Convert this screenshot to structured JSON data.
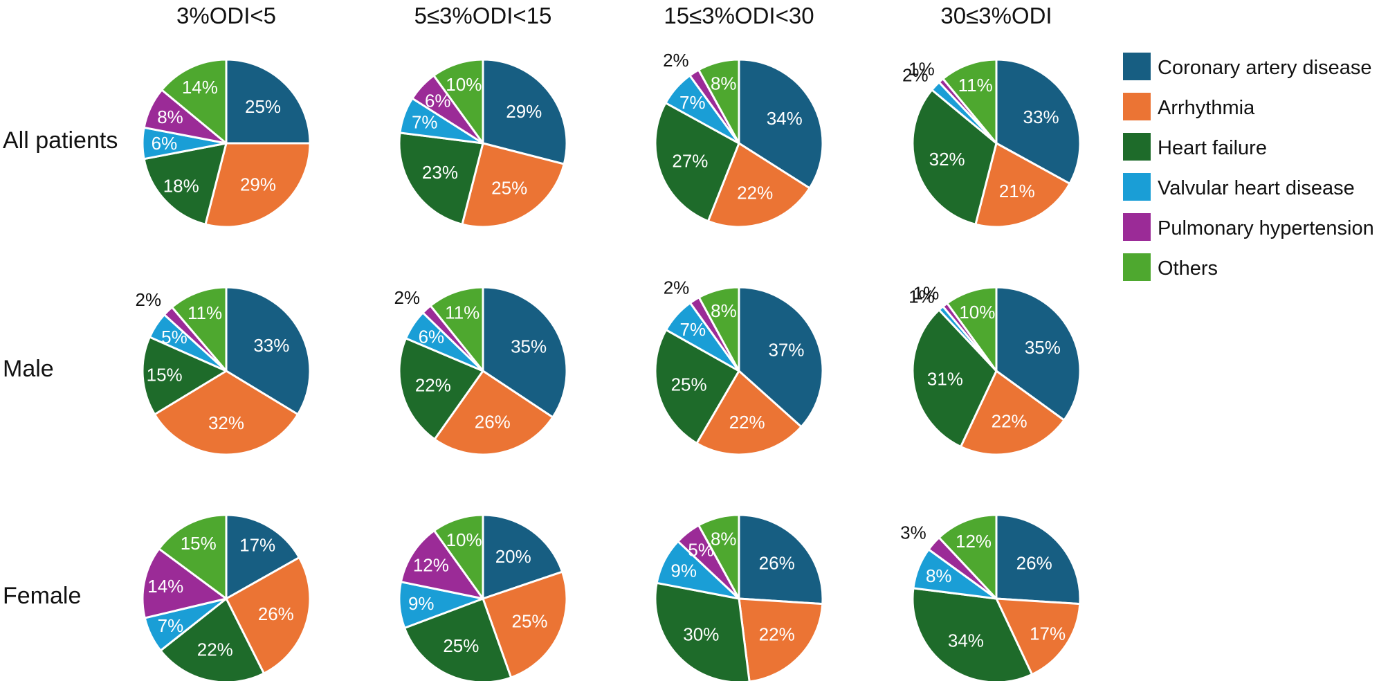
{
  "chart_data": {
    "type": "pie",
    "title": "",
    "columns": [
      "3%ODI<5",
      "5≤3%ODI<15",
      "15≤3%ODI<30",
      "30≤3%ODI"
    ],
    "rows": [
      "All patients",
      "Male",
      "Female"
    ],
    "categories": [
      "Coronary artery disease",
      "Arrhythmia",
      "Heart failure",
      "Valvular heart disease",
      "Pulmonary hypertension",
      "Others"
    ],
    "colors": [
      "#175e82",
      "#eb7434",
      "#1e6b2a",
      "#1a9ed6",
      "#9b2b97",
      "#4ea82f"
    ],
    "legend_position": "right",
    "pies": [
      {
        "row": "All patients",
        "column": "3%ODI<5",
        "values": [
          25,
          29,
          18,
          6,
          8,
          14
        ],
        "labels": [
          "25%",
          "29%",
          "18%",
          "6%",
          "8%",
          "14%"
        ]
      },
      {
        "row": "All patients",
        "column": "5≤3%ODI<15",
        "values": [
          29,
          25,
          23,
          7,
          6,
          10
        ],
        "labels": [
          "29%",
          "25%",
          "23%",
          "7%",
          "6%",
          "10%"
        ]
      },
      {
        "row": "All patients",
        "column": "15≤3%ODI<30",
        "values": [
          34,
          22,
          27,
          7,
          2,
          8
        ],
        "labels": [
          "34%",
          "22%",
          "27%",
          "7%",
          "2%",
          "8%"
        ]
      },
      {
        "row": "All patients",
        "column": "30≤3%ODI",
        "values": [
          33,
          21,
          32,
          2,
          1,
          11
        ],
        "labels": [
          "33%",
          "21%",
          "32%",
          "2%",
          "1%",
          "11%"
        ]
      },
      {
        "row": "Male",
        "column": "3%ODI<5",
        "values": [
          33,
          32,
          15,
          5,
          2,
          11
        ],
        "labels": [
          "33%",
          "32%",
          "15%",
          "5%",
          "2%",
          "11%"
        ]
      },
      {
        "row": "Male",
        "column": "5≤3%ODI<15",
        "values": [
          35,
          26,
          22,
          6,
          2,
          11
        ],
        "labels": [
          "35%",
          "26%",
          "22%",
          "6%",
          "2%",
          "11%"
        ]
      },
      {
        "row": "Male",
        "column": "15≤3%ODI<30",
        "values": [
          37,
          22,
          25,
          7,
          2,
          8
        ],
        "labels": [
          "37%",
          "22%",
          "25%",
          "7%",
          "2%",
          "8%"
        ]
      },
      {
        "row": "Male",
        "column": "30≤3%ODI",
        "values": [
          35,
          22,
          31,
          1,
          1,
          10
        ],
        "labels": [
          "35%",
          "22%",
          "31%",
          "1%",
          "1%",
          "10%"
        ]
      },
      {
        "row": "Female",
        "column": "3%ODI<5",
        "values": [
          17,
          26,
          22,
          7,
          14,
          15
        ],
        "labels": [
          "17%",
          "26%",
          "22%",
          "7%",
          "14%",
          "15%"
        ]
      },
      {
        "row": "Female",
        "column": "5≤3%ODI<15",
        "values": [
          20,
          25,
          25,
          9,
          12,
          10
        ],
        "labels": [
          "20%",
          "25%",
          "25%",
          "9%",
          "12%",
          "10%"
        ]
      },
      {
        "row": "Female",
        "column": "15≤3%ODI<30",
        "values": [
          26,
          22,
          30,
          9,
          5,
          8
        ],
        "labels": [
          "26%",
          "22%",
          "30%",
          "9%",
          "5%",
          "8%"
        ]
      },
      {
        "row": "Female",
        "column": "30≤3%ODI",
        "values": [
          26,
          17,
          34,
          8,
          3,
          12
        ],
        "labels": [
          "26%",
          "17%",
          "34%",
          "8%",
          "3%",
          "12%"
        ]
      }
    ]
  }
}
